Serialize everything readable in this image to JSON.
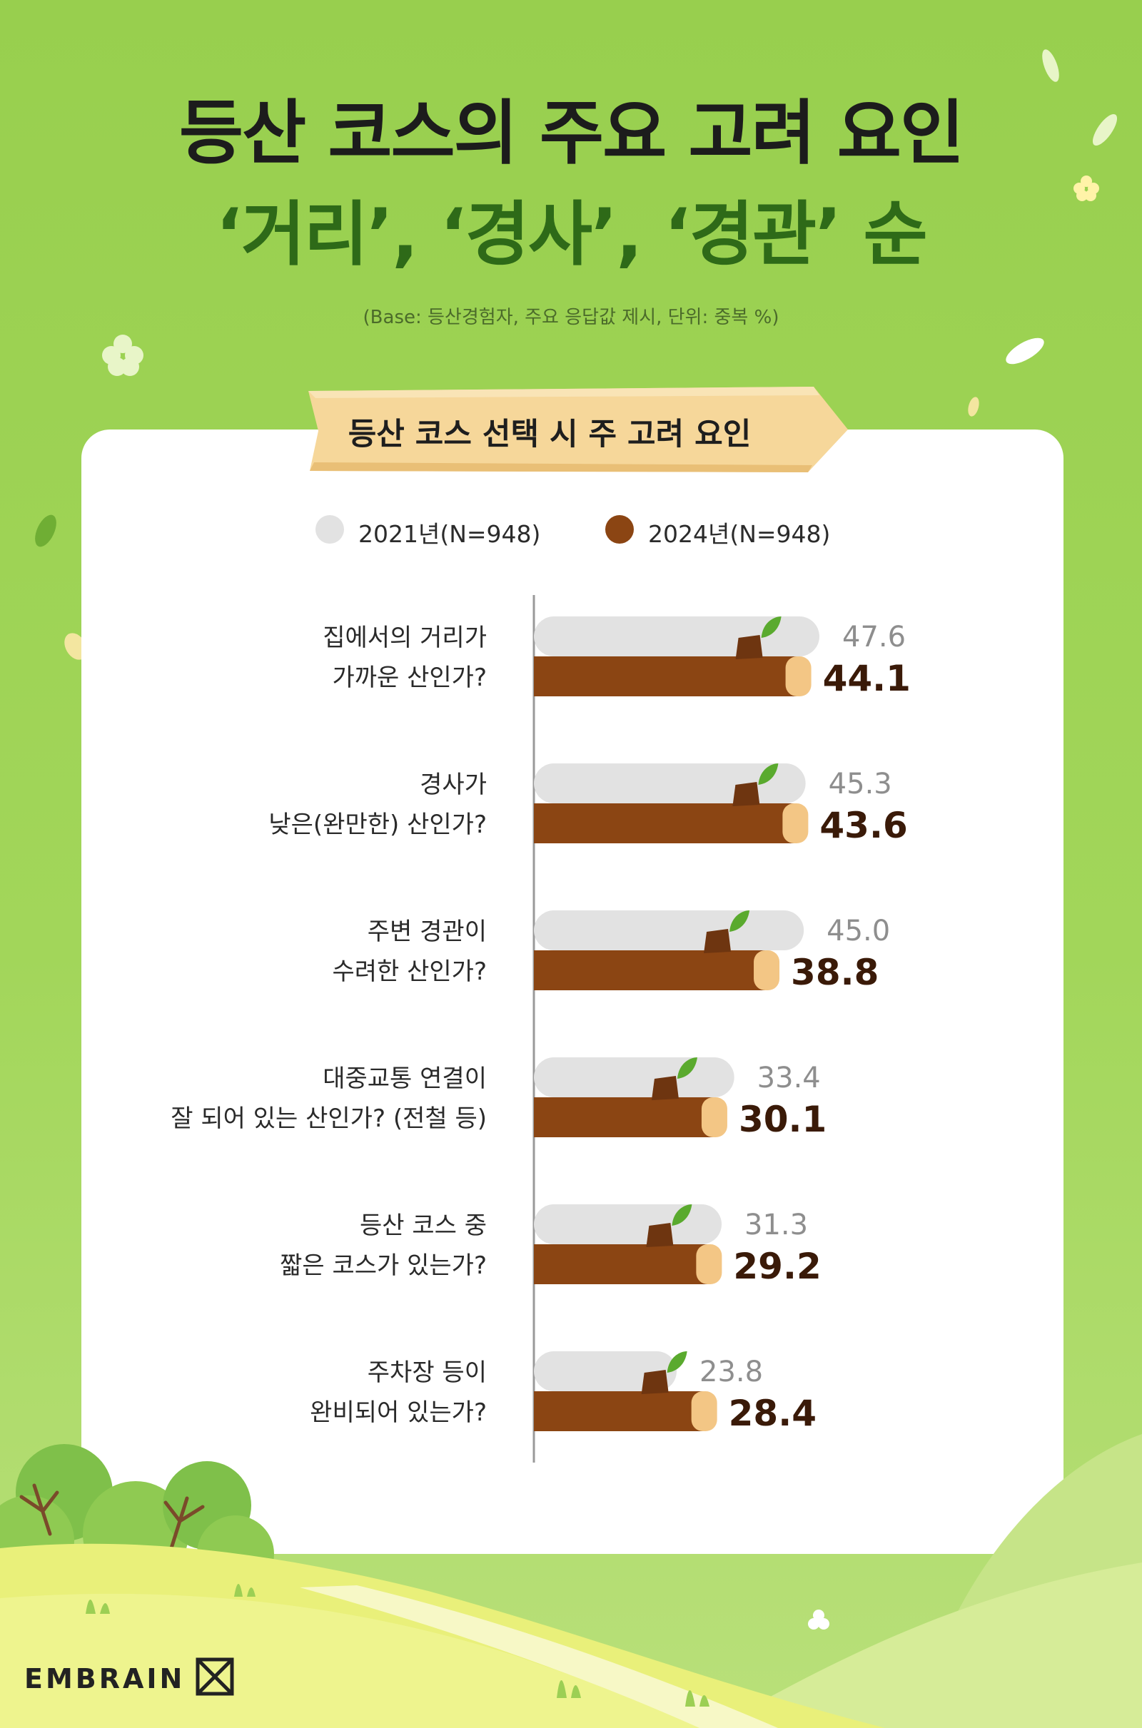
{
  "title_line1": "등산 코스의 주요 고려 요인",
  "title_line2": "‘거리’, ‘경사’, ‘경관’ 순",
  "subtitle": "(Base: 등산경험자, 주요 응답값 제시, 단위: 중복 %)",
  "banner": "등산 코스 선택 시 주 고려 요인",
  "logo_text": "EMBRAIN",
  "colors": {
    "background": "#a2d65a",
    "series_2021": "#e2e2e2",
    "series_2024": "#8b4513",
    "label_2021": "#8e8e8e",
    "label_2024": "#3a1a08",
    "log_end": "#f3c685",
    "leaf": "#5aaa2e"
  },
  "chart_data": {
    "type": "bar",
    "orientation": "horizontal",
    "legend_position": "top",
    "grid": false,
    "xlim": [
      0,
      60
    ],
    "categories": [
      [
        "집에서의 거리가",
        "가까운 산인가?"
      ],
      [
        "경사가",
        "낮은(완만한) 산인가?"
      ],
      [
        "주변 경관이",
        "수려한 산인가?"
      ],
      [
        "대중교통 연결이",
        "잘 되어 있는 산인가? (전철 등)"
      ],
      [
        "등산 코스 중",
        "짧은 코스가 있는가?"
      ],
      [
        "주차장 등이",
        "완비되어 있는가?"
      ]
    ],
    "series": [
      {
        "name": "2021년(N=948)",
        "values": [
          47.6,
          45.3,
          45.0,
          33.4,
          31.3,
          23.8
        ],
        "labels": [
          "47.6",
          "45.3",
          "45.0",
          "33.4",
          "31.3",
          "23.8"
        ]
      },
      {
        "name": "2024년(N=948)",
        "values": [
          44.1,
          43.6,
          38.8,
          30.1,
          29.2,
          28.4
        ],
        "labels": [
          "44.1",
          "43.6",
          "38.8",
          "30.1",
          "29.2",
          "28.4"
        ]
      }
    ]
  }
}
